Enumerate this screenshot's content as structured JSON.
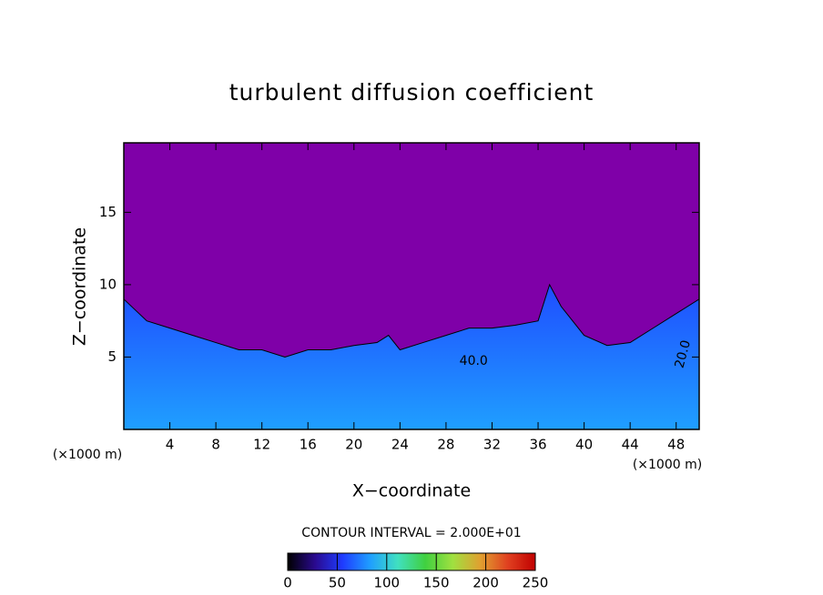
{
  "chart_data": {
    "type": "contour",
    "title": "turbulent diffusion coefficient",
    "xlabel": "X−coordinate",
    "ylabel": "Z−coordinate",
    "x_unit": "(×1000 m)",
    "xlim": [
      0,
      50
    ],
    "ylim": [
      0,
      19.8
    ],
    "xticks": [
      4,
      8,
      12,
      16,
      20,
      24,
      28,
      32,
      36,
      40,
      44,
      48
    ],
    "yticks": [
      5,
      10,
      15
    ],
    "background_color": "#7f00a8",
    "field_color": "#1f4dff",
    "x": [
      0,
      2,
      4,
      6,
      8,
      10,
      12,
      14,
      16,
      18,
      20,
      22,
      23,
      24,
      26,
      28,
      30,
      32,
      34,
      36,
      37,
      38,
      40,
      42,
      44,
      46,
      48,
      50
    ],
    "values": [
      9,
      7.5,
      7,
      6.5,
      6,
      5.5,
      5.5,
      5,
      5.5,
      5.5,
      5.8,
      6,
      6.5,
      5.5,
      6,
      6.5,
      7,
      7,
      7.2,
      7.5,
      10,
      8.5,
      6.5,
      5.8,
      6,
      7,
      8,
      9
    ],
    "annotations": [
      "40.0",
      "20.0"
    ],
    "contour_interval": "CONTOUR INTERVAL = 2.000E+01",
    "colorbar": {
      "lim": [
        0,
        250
      ],
      "ticks": [
        0,
        50,
        100,
        150,
        200,
        250
      ],
      "colors": [
        "#000000",
        "#2a0a8f",
        "#1f3cff",
        "#1f9fff",
        "#40e0c0",
        "#40d040",
        "#a0e040",
        "#e0a030",
        "#e04020",
        "#c00000"
      ]
    }
  }
}
